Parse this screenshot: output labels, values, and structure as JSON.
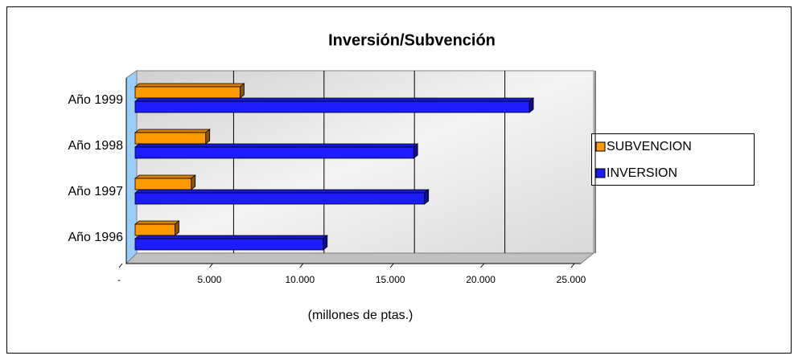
{
  "chart_data": {
    "type": "bar3d_horizontal",
    "title": "Inversión/Subvención",
    "x_label": "(millones de ptas.)",
    "categories": [
      "Año 1996",
      "Año 1997",
      "Año 1998",
      "Año 1999"
    ],
    "series": [
      {
        "name": "SUBVENCION",
        "color": "#ff9900",
        "values": [
          2200,
          3100,
          3900,
          5800
        ]
      },
      {
        "name": "INVERSION",
        "color": "#1c1cff",
        "values": [
          10400,
          16000,
          15400,
          21800
        ]
      }
    ],
    "xlim": [
      0,
      25000
    ],
    "xticks": [
      {
        "value": 0,
        "label": "-"
      },
      {
        "value": 5000,
        "label": "5.000"
      },
      {
        "value": 10000,
        "label": "10.000"
      },
      {
        "value": 15000,
        "label": "15.000"
      },
      {
        "value": 20000,
        "label": "20.000"
      },
      {
        "value": 25000,
        "label": "25.000"
      }
    ],
    "grid": true,
    "legend": "right"
  }
}
